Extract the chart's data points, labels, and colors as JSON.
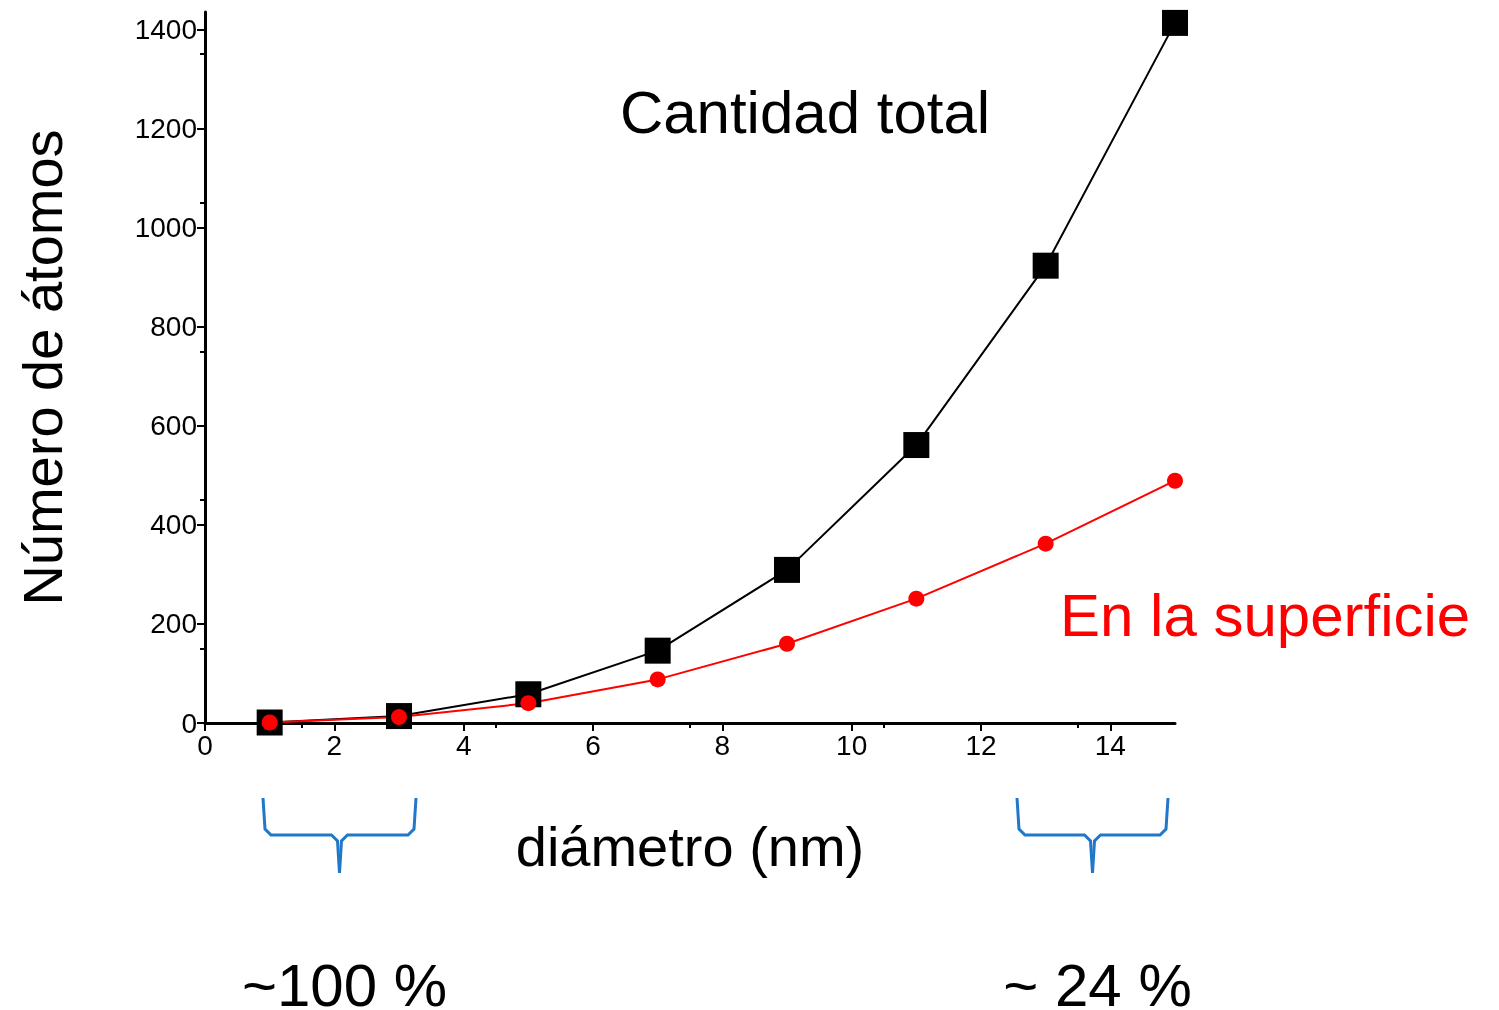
{
  "chart_data": {
    "type": "line",
    "xlabel": "diámetro (nm)",
    "ylabel": "Número de átomos",
    "x": [
      1,
      3,
      5,
      7,
      9,
      11,
      13,
      15
    ],
    "series": [
      {
        "name": "Cantidad total",
        "color": "#000000",
        "marker": "square",
        "values": [
          1,
          14,
          58,
          146,
          309,
          561,
          923,
          1413
        ]
      },
      {
        "name": "En la superficie",
        "color": "#ff0000",
        "marker": "circle",
        "values": [
          1,
          12,
          40,
          88,
          160,
          251,
          362,
          489
        ]
      }
    ],
    "xlim": [
      0,
      15
    ],
    "xticks": [
      0,
      2,
      4,
      6,
      8,
      10,
      12,
      14
    ],
    "ylim": [
      0,
      1435
    ],
    "yticks": [
      0,
      200,
      400,
      600,
      800,
      1000,
      1200,
      1400
    ],
    "grid": false,
    "legend": false,
    "line_style": "solid",
    "annotations": [
      "~100 %",
      "~ 24 %"
    ]
  }
}
